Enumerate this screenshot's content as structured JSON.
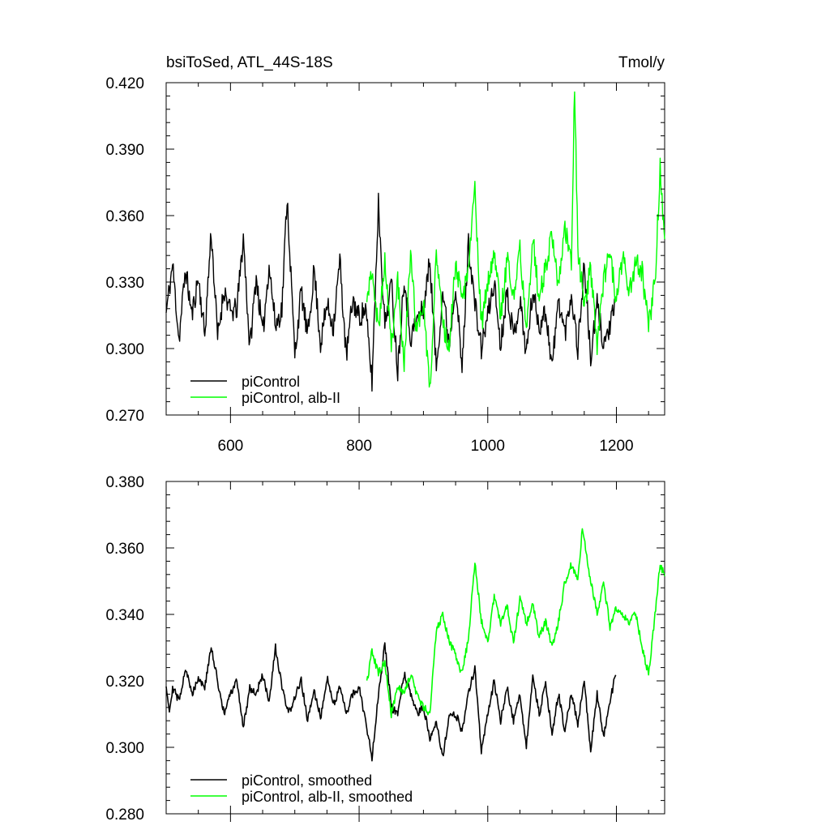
{
  "chart_data": [
    {
      "type": "line",
      "title_left": "bsiToSed, ATL_44S-18S",
      "title_right": "Tmol/y",
      "xlim": [
        500,
        1275
      ],
      "ylim": [
        0.27,
        0.42
      ],
      "xticks": [
        600,
        800,
        1000,
        1200
      ],
      "yticks": [
        0.27,
        0.3,
        0.33,
        0.36,
        0.39,
        0.42
      ],
      "ytick_labels": [
        "0.270",
        "0.300",
        "0.330",
        "0.360",
        "0.390",
        "0.420"
      ],
      "legend_position": "bottom-left",
      "series": [
        {
          "name": "piControl",
          "color": "#000000",
          "x_start": 500,
          "x_end": 1199,
          "points": [
            [
              500,
              0.316
            ],
            [
              510,
              0.338
            ],
            [
              520,
              0.304
            ],
            [
              530,
              0.336
            ],
            [
              540,
              0.315
            ],
            [
              550,
              0.332
            ],
            [
              560,
              0.306
            ],
            [
              570,
              0.353
            ],
            [
              580,
              0.305
            ],
            [
              590,
              0.327
            ],
            [
              600,
              0.316
            ],
            [
              610,
              0.318
            ],
            [
              620,
              0.35
            ],
            [
              630,
              0.3
            ],
            [
              640,
              0.333
            ],
            [
              650,
              0.306
            ],
            [
              660,
              0.338
            ],
            [
              670,
              0.31
            ],
            [
              680,
              0.318
            ],
            [
              688,
              0.369
            ],
            [
              700,
              0.297
            ],
            [
              710,
              0.326
            ],
            [
              720,
              0.305
            ],
            [
              730,
              0.336
            ],
            [
              740,
              0.302
            ],
            [
              750,
              0.32
            ],
            [
              760,
              0.31
            ],
            [
              770,
              0.34
            ],
            [
              780,
              0.296
            ],
            [
              790,
              0.322
            ],
            [
              800,
              0.314
            ],
            [
              810,
              0.318
            ],
            [
              820,
              0.285
            ],
            [
              830,
              0.366
            ],
            [
              840,
              0.31
            ],
            [
              850,
              0.33
            ],
            [
              860,
              0.29
            ],
            [
              870,
              0.333
            ],
            [
              880,
              0.305
            ],
            [
              890,
              0.313
            ],
            [
              900,
              0.318
            ],
            [
              910,
              0.34
            ],
            [
              920,
              0.291
            ],
            [
              930,
              0.326
            ],
            [
              940,
              0.302
            ],
            [
              950,
              0.33
            ],
            [
              960,
              0.29
            ],
            [
              970,
              0.348
            ],
            [
              980,
              0.32
            ],
            [
              990,
              0.3
            ],
            [
              1000,
              0.315
            ],
            [
              1010,
              0.33
            ],
            [
              1020,
              0.301
            ],
            [
              1030,
              0.327
            ],
            [
              1040,
              0.305
            ],
            [
              1050,
              0.322
            ],
            [
              1060,
              0.298
            ],
            [
              1070,
              0.326
            ],
            [
              1080,
              0.31
            ],
            [
              1090,
              0.317
            ],
            [
              1100,
              0.292
            ],
            [
              1110,
              0.322
            ],
            [
              1120,
              0.307
            ],
            [
              1130,
              0.325
            ],
            [
              1140,
              0.3
            ],
            [
              1150,
              0.338
            ],
            [
              1160,
              0.295
            ],
            [
              1170,
              0.32
            ],
            [
              1180,
              0.302
            ],
            [
              1190,
              0.31
            ],
            [
              1199,
              0.32
            ]
          ]
        },
        {
          "name": "piControl, alb-II",
          "color": "#00ff00",
          "x_start": 812,
          "x_end": 1275,
          "points": [
            [
              812,
              0.322
            ],
            [
              820,
              0.336
            ],
            [
              830,
              0.308
            ],
            [
              840,
              0.34
            ],
            [
              850,
              0.3
            ],
            [
              860,
              0.33
            ],
            [
              870,
              0.294
            ],
            [
              880,
              0.34
            ],
            [
              890,
              0.306
            ],
            [
              900,
              0.322
            ],
            [
              910,
              0.28
            ],
            [
              920,
              0.345
            ],
            [
              930,
              0.31
            ],
            [
              940,
              0.3
            ],
            [
              950,
              0.34
            ],
            [
              960,
              0.32
            ],
            [
              970,
              0.336
            ],
            [
              980,
              0.372
            ],
            [
              990,
              0.31
            ],
            [
              1000,
              0.33
            ],
            [
              1010,
              0.345
            ],
            [
              1020,
              0.315
            ],
            [
              1030,
              0.34
            ],
            [
              1040,
              0.322
            ],
            [
              1050,
              0.345
            ],
            [
              1060,
              0.31
            ],
            [
              1070,
              0.35
            ],
            [
              1080,
              0.322
            ],
            [
              1090,
              0.338
            ],
            [
              1100,
              0.35
            ],
            [
              1110,
              0.328
            ],
            [
              1120,
              0.355
            ],
            [
              1130,
              0.34
            ],
            [
              1135,
              0.42
            ],
            [
              1140,
              0.345
            ],
            [
              1150,
              0.32
            ],
            [
              1160,
              0.336
            ],
            [
              1170,
              0.3
            ],
            [
              1180,
              0.33
            ],
            [
              1190,
              0.345
            ],
            [
              1200,
              0.32
            ],
            [
              1210,
              0.343
            ],
            [
              1220,
              0.325
            ],
            [
              1230,
              0.34
            ],
            [
              1240,
              0.335
            ],
            [
              1250,
              0.31
            ],
            [
              1260,
              0.33
            ],
            [
              1268,
              0.382
            ],
            [
              1275,
              0.348
            ]
          ]
        }
      ]
    },
    {
      "type": "line",
      "title_left": "",
      "title_right": "",
      "xlim": [
        500,
        1275
      ],
      "ylim": [
        0.28,
        0.38
      ],
      "xticks": [
        600,
        800,
        1000,
        1200
      ],
      "yticks": [
        0.28,
        0.3,
        0.32,
        0.34,
        0.36,
        0.38
      ],
      "ytick_labels": [
        "0.280",
        "0.300",
        "0.320",
        "0.340",
        "0.360",
        "0.380"
      ],
      "legend_position": "bottom-left",
      "series": [
        {
          "name": "piControl, smoothed",
          "color": "#000000",
          "x_start": 500,
          "x_end": 1199,
          "points": [
            [
              500,
              0.319
            ],
            [
              505,
              0.311
            ],
            [
              510,
              0.318
            ],
            [
              520,
              0.314
            ],
            [
              530,
              0.324
            ],
            [
              540,
              0.316
            ],
            [
              550,
              0.321
            ],
            [
              560,
              0.318
            ],
            [
              570,
              0.33
            ],
            [
              580,
              0.32
            ],
            [
              590,
              0.31
            ],
            [
              600,
              0.316
            ],
            [
              610,
              0.32
            ],
            [
              620,
              0.306
            ],
            [
              630,
              0.318
            ],
            [
              640,
              0.316
            ],
            [
              650,
              0.322
            ],
            [
              660,
              0.313
            ],
            [
              670,
              0.33
            ],
            [
              680,
              0.318
            ],
            [
              690,
              0.31
            ],
            [
              700,
              0.315
            ],
            [
              710,
              0.32
            ],
            [
              720,
              0.308
            ],
            [
              730,
              0.317
            ],
            [
              740,
              0.309
            ],
            [
              750,
              0.321
            ],
            [
              760,
              0.313
            ],
            [
              770,
              0.318
            ],
            [
              780,
              0.31
            ],
            [
              790,
              0.316
            ],
            [
              800,
              0.318
            ],
            [
              810,
              0.308
            ],
            [
              820,
              0.297
            ],
            [
              830,
              0.316
            ],
            [
              840,
              0.331
            ],
            [
              850,
              0.312
            ],
            [
              860,
              0.31
            ],
            [
              870,
              0.322
            ],
            [
              880,
              0.316
            ],
            [
              890,
              0.31
            ],
            [
              900,
              0.312
            ],
            [
              910,
              0.303
            ],
            [
              920,
              0.308
            ],
            [
              930,
              0.297
            ],
            [
              940,
              0.309
            ],
            [
              950,
              0.31
            ],
            [
              960,
              0.305
            ],
            [
              970,
              0.316
            ],
            [
              980,
              0.324
            ],
            [
              990,
              0.299
            ],
            [
              1000,
              0.31
            ],
            [
              1010,
              0.32
            ],
            [
              1020,
              0.308
            ],
            [
              1030,
              0.318
            ],
            [
              1040,
              0.308
            ],
            [
              1050,
              0.316
            ],
            [
              1060,
              0.3
            ],
            [
              1070,
              0.322
            ],
            [
              1080,
              0.31
            ],
            [
              1090,
              0.319
            ],
            [
              1100,
              0.304
            ],
            [
              1110,
              0.316
            ],
            [
              1120,
              0.305
            ],
            [
              1130,
              0.316
            ],
            [
              1140,
              0.307
            ],
            [
              1150,
              0.32
            ],
            [
              1160,
              0.299
            ],
            [
              1170,
              0.316
            ],
            [
              1180,
              0.303
            ],
            [
              1190,
              0.314
            ],
            [
              1199,
              0.322
            ]
          ]
        },
        {
          "name": "piControl, alb-II, smoothed",
          "color": "#00ff00",
          "x_start": 812,
          "x_end": 1275,
          "points": [
            [
              812,
              0.319
            ],
            [
              820,
              0.329
            ],
            [
              830,
              0.322
            ],
            [
              840,
              0.326
            ],
            [
              850,
              0.31
            ],
            [
              860,
              0.318
            ],
            [
              870,
              0.316
            ],
            [
              880,
              0.322
            ],
            [
              890,
              0.316
            ],
            [
              900,
              0.312
            ],
            [
              910,
              0.31
            ],
            [
              920,
              0.335
            ],
            [
              930,
              0.34
            ],
            [
              940,
              0.332
            ],
            [
              950,
              0.328
            ],
            [
              960,
              0.322
            ],
            [
              970,
              0.333
            ],
            [
              980,
              0.356
            ],
            [
              990,
              0.338
            ],
            [
              1000,
              0.332
            ],
            [
              1010,
              0.345
            ],
            [
              1020,
              0.337
            ],
            [
              1030,
              0.343
            ],
            [
              1040,
              0.331
            ],
            [
              1050,
              0.345
            ],
            [
              1060,
              0.337
            ],
            [
              1070,
              0.343
            ],
            [
              1080,
              0.333
            ],
            [
              1090,
              0.338
            ],
            [
              1100,
              0.33
            ],
            [
              1110,
              0.338
            ],
            [
              1120,
              0.35
            ],
            [
              1130,
              0.355
            ],
            [
              1140,
              0.35
            ],
            [
              1147,
              0.366
            ],
            [
              1160,
              0.35
            ],
            [
              1170,
              0.34
            ],
            [
              1180,
              0.35
            ],
            [
              1190,
              0.336
            ],
            [
              1200,
              0.342
            ],
            [
              1210,
              0.34
            ],
            [
              1220,
              0.338
            ],
            [
              1230,
              0.34
            ],
            [
              1240,
              0.33
            ],
            [
              1250,
              0.322
            ],
            [
              1260,
              0.34
            ],
            [
              1268,
              0.355
            ],
            [
              1275,
              0.352
            ]
          ]
        }
      ]
    }
  ]
}
